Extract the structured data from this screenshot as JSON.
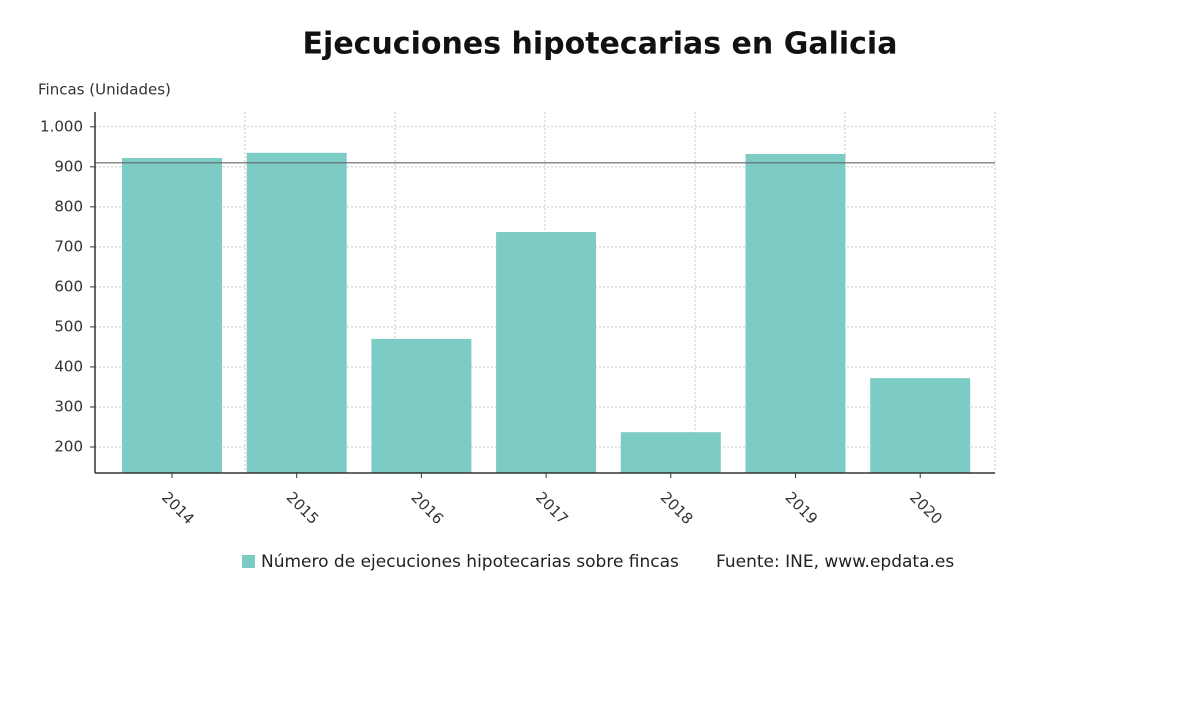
{
  "chart_data": {
    "type": "bar",
    "title": "Ejecuciones hipotecarias en Galicia",
    "y_label": "Fincas (Unidades)",
    "source": "Fuente: INE, www.epdata.es",
    "categories": [
      "2014",
      "2015",
      "2016",
      "2017",
      "2018",
      "2019",
      "2020"
    ],
    "series": [
      {
        "name": "Número de ejecuciones hipotecarias sobre fincas",
        "color": "#7ccbc4",
        "values": [
          922,
          935,
          470,
          737,
          237,
          932,
          372
        ]
      }
    ],
    "reference_line": 910,
    "ylim": [
      135,
      1037
    ],
    "yticks": [
      200,
      300,
      400,
      500,
      600,
      700,
      800,
      900,
      {
        "value": 1000,
        "label": "1.000"
      }
    ],
    "grid": true
  }
}
